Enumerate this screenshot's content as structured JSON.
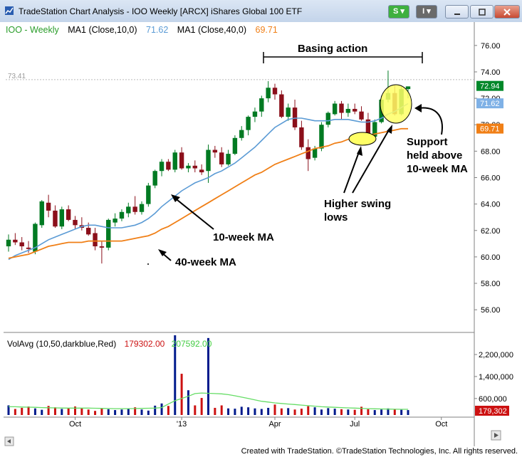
{
  "window": {
    "title": "TradeStation Chart Analysis - IOO Weekly [ARCX] iShares Global 100 ETF",
    "buttons": {
      "s_label": "S",
      "i_label": "I"
    }
  },
  "legend": {
    "symbol": "IOO - Weekly",
    "ma1_label": "MA1 (Close,10,0)",
    "ma1_value": "71.62",
    "ma2_label": "MA1 (Close,40,0)",
    "ma2_value": "69.71"
  },
  "volume_legend": {
    "label": "VolAvg (10,50,darkblue,Red)",
    "vol_value": "179302.00",
    "avg_value": "207592.00"
  },
  "annotations": {
    "basing": "Basing action",
    "ma10": "10-week MA",
    "ma40": "40-week MA",
    "higher_lows": [
      "Higher swing",
      "lows"
    ],
    "support": [
      "Support",
      "held above",
      "10-week MA"
    ]
  },
  "price_tags": {
    "last": "72.94",
    "ma10": "71.62",
    "ma40": "69.71",
    "high_ref": "73.41"
  },
  "volume_tag": "179,302",
  "footer": "Created with TradeStation. ©TradeStation Technologies, Inc. All rights reserved.",
  "colors": {
    "up": "#007a22",
    "down": "#8b0f1a",
    "ma10": "#5b9bd5",
    "ma40": "#f07f16",
    "vol_up": "#001a8c",
    "vol_down": "#cc1111",
    "vol_avg": "#66dd66",
    "highlight": "#ffff66"
  },
  "chart_data": {
    "type": "line",
    "title": "",
    "ylim": [
      54.5,
      77.5
    ],
    "yticks": [
      56,
      58,
      60,
      62,
      64,
      66,
      68,
      70,
      72,
      74,
      76
    ],
    "ytick_labels": [
      "56.00",
      "58.00",
      "60.00",
      "62.00",
      "64.00",
      "66.00",
      "68.00",
      "70.00",
      "72.00",
      "74.00",
      "76.00"
    ],
    "xtick_labels": [
      {
        "label": "Oct",
        "week": 10
      },
      {
        "label": "'13",
        "week": 26
      },
      {
        "label": "Apr",
        "week": 40
      },
      {
        "label": "Jul",
        "week": 52
      },
      {
        "label": "Oct",
        "week": 65
      }
    ],
    "candles": [
      [
        60.8,
        61.7,
        60.4,
        61.3
      ],
      [
        61.3,
        61.8,
        60.9,
        61.1
      ],
      [
        61.1,
        61.5,
        60.5,
        60.8
      ],
      [
        60.7,
        61.2,
        60.3,
        60.6
      ],
      [
        60.4,
        62.6,
        60.2,
        62.5
      ],
      [
        62.4,
        64.3,
        62.2,
        64.2
      ],
      [
        64.1,
        64.7,
        63.0,
        63.5
      ],
      [
        63.5,
        63.9,
        62.2,
        62.3
      ],
      [
        62.3,
        63.8,
        62.1,
        63.6
      ],
      [
        63.6,
        63.9,
        62.7,
        62.8
      ],
      [
        62.8,
        63.1,
        62.1,
        62.4
      ],
      [
        62.4,
        63.0,
        62.0,
        62.2
      ],
      [
        62.2,
        62.6,
        61.6,
        61.7
      ],
      [
        61.8,
        62.2,
        60.5,
        60.8
      ],
      [
        60.8,
        61.2,
        59.5,
        60.7
      ],
      [
        60.7,
        62.9,
        60.5,
        62.8
      ],
      [
        62.6,
        63.3,
        62.3,
        62.9
      ],
      [
        62.9,
        63.6,
        62.7,
        63.4
      ],
      [
        63.3,
        64.1,
        63.0,
        63.8
      ],
      [
        63.8,
        64.6,
        63.2,
        63.4
      ],
      [
        63.4,
        64.2,
        63.2,
        64.0
      ],
      [
        64.0,
        65.6,
        63.8,
        65.4
      ],
      [
        65.4,
        66.6,
        65.2,
        66.5
      ],
      [
        66.5,
        67.4,
        66.1,
        67.2
      ],
      [
        67.2,
        67.4,
        66.5,
        66.6
      ],
      [
        66.6,
        68.1,
        66.4,
        67.9
      ],
      [
        67.9,
        68.3,
        66.6,
        66.7
      ],
      [
        66.7,
        67.1,
        66.4,
        66.9
      ],
      [
        66.9,
        67.3,
        66.4,
        66.7
      ],
      [
        66.6,
        67.0,
        66.2,
        66.4
      ],
      [
        66.5,
        68.5,
        65.6,
        68.1
      ],
      [
        68.1,
        68.4,
        67.5,
        67.9
      ],
      [
        67.9,
        68.3,
        66.8,
        67.0
      ],
      [
        67.0,
        68.1,
        66.9,
        67.8
      ],
      [
        67.8,
        69.2,
        67.7,
        69.0
      ],
      [
        69.0,
        69.9,
        68.8,
        69.6
      ],
      [
        69.6,
        70.7,
        69.2,
        70.6
      ],
      [
        70.6,
        71.3,
        70.2,
        71.0
      ],
      [
        71.0,
        72.2,
        70.6,
        72.0
      ],
      [
        72.0,
        73.3,
        71.7,
        72.8
      ],
      [
        72.8,
        73.1,
        71.9,
        72.3
      ],
      [
        72.3,
        72.6,
        70.5,
        70.6
      ],
      [
        70.6,
        71.6,
        70.3,
        71.3
      ],
      [
        71.3,
        71.9,
        69.6,
        69.8
      ],
      [
        69.8,
        70.3,
        68.1,
        68.3
      ],
      [
        68.3,
        68.9,
        66.5,
        67.4
      ],
      [
        67.5,
        68.4,
        67.3,
        68.2
      ],
      [
        68.2,
        70.2,
        68.0,
        70.0
      ],
      [
        70.0,
        71.0,
        69.8,
        70.9
      ],
      [
        70.8,
        71.8,
        70.7,
        71.6
      ],
      [
        71.6,
        71.8,
        70.4,
        70.9
      ],
      [
        70.9,
        71.6,
        70.6,
        71.2
      ],
      [
        71.2,
        71.6,
        70.8,
        71.0
      ],
      [
        71.0,
        71.4,
        70.3,
        70.4
      ],
      [
        70.4,
        70.9,
        68.8,
        69.1
      ],
      [
        69.1,
        70.4,
        69.0,
        70.2
      ],
      [
        70.2,
        72.2,
        70.1,
        71.9
      ],
      [
        71.9,
        74.1,
        71.7,
        72.4
      ],
      [
        72.4,
        73.0,
        70.7,
        70.8
      ],
      [
        70.8,
        72.9,
        70.7,
        72.7
      ],
      [
        72.7,
        72.9,
        72.0,
        72.9
      ]
    ],
    "ma10": [
      59.8,
      60.1,
      60.3,
      60.5,
      60.7,
      61.0,
      61.3,
      61.5,
      61.7,
      61.9,
      62.1,
      62.3,
      62.4,
      62.4,
      62.3,
      62.2,
      62.2,
      62.2,
      62.3,
      62.4,
      62.6,
      62.9,
      63.3,
      63.8,
      64.2,
      64.6,
      65.0,
      65.3,
      65.6,
      65.8,
      66.0,
      66.3,
      66.5,
      66.8,
      67.1,
      67.5,
      67.9,
      68.3,
      68.8,
      69.3,
      69.8,
      70.1,
      70.4,
      70.5,
      70.5,
      70.4,
      70.3,
      70.3,
      70.3,
      70.4,
      70.4,
      70.4,
      70.3,
      70.2,
      70.2,
      70.3,
      70.5,
      70.8,
      71.0,
      71.3,
      71.6
    ],
    "ma40": [
      59.9,
      60.0,
      60.1,
      60.2,
      60.4,
      60.6,
      60.8,
      60.9,
      61.0,
      61.1,
      61.1,
      61.1,
      61.2,
      61.2,
      61.2,
      61.2,
      61.2,
      61.2,
      61.3,
      61.4,
      61.5,
      61.6,
      61.8,
      62.1,
      62.3,
      62.6,
      62.9,
      63.2,
      63.5,
      63.8,
      64.1,
      64.4,
      64.7,
      65.0,
      65.3,
      65.6,
      65.9,
      66.2,
      66.4,
      66.7,
      67.0,
      67.2,
      67.4,
      67.6,
      67.8,
      68.0,
      68.2,
      68.3,
      68.4,
      68.6,
      68.7,
      68.9,
      69.0,
      69.1,
      69.2,
      69.3,
      69.4,
      69.5,
      69.6,
      69.7,
      69.7
    ],
    "vol_ylim": [
      0,
      2900000
    ],
    "vol_yticks": [
      600000,
      1400000,
      2200000
    ],
    "vol_ytick_labels": [
      "600,000",
      "1,400,000",
      "2,200,000"
    ],
    "volume": [
      350000,
      220000,
      260000,
      310000,
      240000,
      190000,
      330000,
      280000,
      220000,
      250000,
      310000,
      260000,
      200000,
      150000,
      240000,
      210000,
      180000,
      200000,
      230000,
      280000,
      200000,
      160000,
      340000,
      420000,
      330000,
      2900000,
      1500000,
      900000,
      350000,
      620000,
      2800000,
      260000,
      350000,
      240000,
      230000,
      300000,
      280000,
      240000,
      220000,
      260000,
      380000,
      240000,
      250000,
      200000,
      230000,
      320000,
      280000,
      200000,
      250000,
      230000,
      210000,
      200000,
      190000,
      300000,
      210000,
      180000,
      200000,
      240000,
      210000,
      190000,
      179302
    ],
    "vol_avg": [
      300000,
      300000,
      290000,
      285000,
      280000,
      270000,
      265000,
      260000,
      255000,
      250000,
      250000,
      250000,
      250000,
      245000,
      240000,
      235000,
      230000,
      230000,
      230000,
      235000,
      240000,
      245000,
      250000,
      270000,
      400000,
      520000,
      600000,
      680000,
      780000,
      800000,
      790000,
      780000,
      770000,
      740000,
      700000,
      650000,
      600000,
      550000,
      500000,
      470000,
      440000,
      420000,
      400000,
      380000,
      360000,
      340000,
      320000,
      300000,
      290000,
      280000,
      270000,
      260000,
      250000,
      240000,
      230000,
      225000,
      220000,
      215000,
      210000,
      208000,
      207592
    ]
  }
}
